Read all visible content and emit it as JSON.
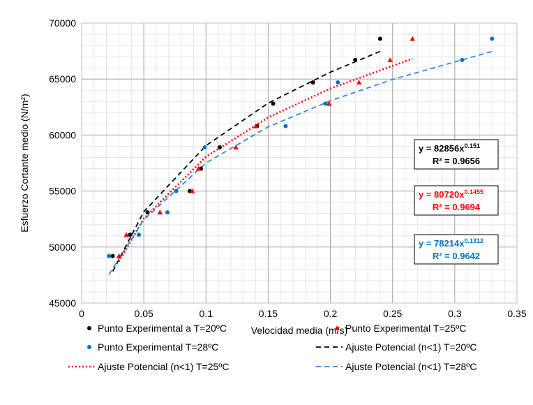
{
  "chart_data": {
    "type": "scatter",
    "xlabel": "Velocidad media (m/s)",
    "ylabel": "Esfuerzo Cortante medio (N/m²)",
    "xlim": [
      0,
      0.35
    ],
    "ylim": [
      45000,
      70000
    ],
    "x_ticks": [
      "0",
      "0.05",
      "0.1",
      "0.15",
      "0.2",
      "0.25",
      "0.3",
      "0.35"
    ],
    "y_ticks": [
      "45000",
      "50000",
      "55000",
      "60000",
      "65000",
      "70000"
    ],
    "grid": "major and minor",
    "legend_position": "bottom",
    "series": [
      {
        "name": "Punto Experimental a T=20ºC",
        "kind": "points",
        "marker": "circle",
        "color": "#000000",
        "x": [
          0.025,
          0.039,
          0.053,
          0.087,
          0.096,
          0.111,
          0.141,
          0.154,
          0.186,
          0.22,
          0.24
        ],
        "y": [
          49200,
          51100,
          53100,
          55000,
          57000,
          58900,
          60800,
          62800,
          64700,
          66700,
          68600
        ]
      },
      {
        "name": "Punto Experimental T=25ºC",
        "kind": "points",
        "marker": "triangle",
        "color": "#ff0000",
        "x": [
          0.03,
          0.036,
          0.063,
          0.089,
          0.094,
          0.124,
          0.14,
          0.199,
          0.223,
          0.248,
          0.266
        ],
        "y": [
          49200,
          51100,
          53100,
          55000,
          57000,
          58900,
          60800,
          62800,
          64700,
          66700,
          68600
        ]
      },
      {
        "name": "Punto Experimental T=28ºC",
        "kind": "points",
        "marker": "circle",
        "color": "#0070c0",
        "x": [
          0.022,
          0.046,
          0.069,
          0.076,
          0.099,
          0.164,
          0.196,
          0.206,
          0.306,
          0.33
        ],
        "y": [
          49200,
          51100,
          53100,
          55000,
          58900,
          60800,
          62800,
          64700,
          66700,
          68600
        ]
      },
      {
        "name": "Ajuste Potencial (n<1) T=20ºC",
        "kind": "line",
        "dash": "dashed",
        "color": "#000000",
        "x": [
          0.025,
          0.05,
          0.1,
          0.15,
          0.2,
          0.24
        ],
        "y": [
          47830,
          53150,
          59060,
          62850,
          65620,
          67470
        ]
      },
      {
        "name": "Ajuste Potencial (n<1) T=25ºC",
        "kind": "line",
        "dash": "dotted",
        "color": "#ff0000",
        "x": [
          0.03,
          0.05,
          0.1,
          0.15,
          0.2,
          0.266
        ],
        "y": [
          48700,
          52550,
          58060,
          61570,
          64150,
          66820
        ]
      },
      {
        "name": "Ajuste Potencial (n<1) T=28ºC",
        "kind": "line",
        "dash": "dashed",
        "color": "#2e86de",
        "x": [
          0.022,
          0.05,
          0.1,
          0.15,
          0.2,
          0.25,
          0.33
        ],
        "y": [
          47550,
          52440,
          57510,
          60730,
          63060,
          64960,
          67460
        ]
      }
    ],
    "annotations": [
      {
        "line1_base": "y = 82856x",
        "line1_exp": "0.151",
        "line2": "R² = 0.9656",
        "color": "#000000"
      },
      {
        "line1_base": "y = 80720x",
        "line1_exp": "0.1455",
        "line2": "R² = 0.9694",
        "color": "#ff0000"
      },
      {
        "line1_base": "y = 78214x",
        "line1_exp": "0.1312",
        "line2": "R² = 0.9642",
        "color": "#0070c0"
      }
    ]
  }
}
